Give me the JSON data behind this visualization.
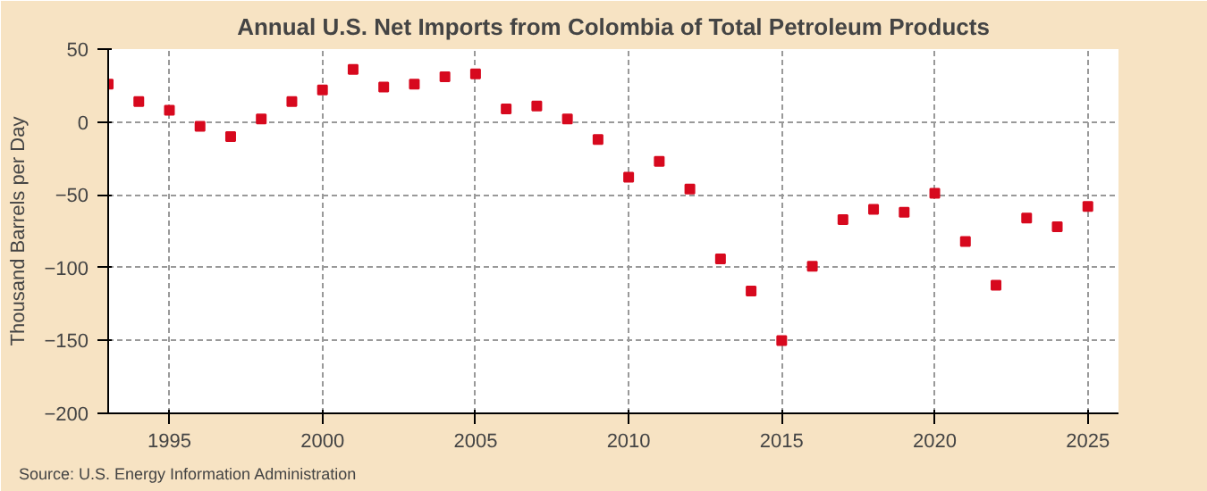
{
  "chart_data": {
    "type": "scatter",
    "title": "Annual U.S. Net Imports from Colombia of Total Petroleum Products",
    "ylabel": "Thousand Barrels per Day",
    "annotations": [
      "Source: U.S. Energy Information Administration"
    ],
    "x": [
      1993,
      1994,
      1995,
      1996,
      1997,
      1998,
      1999,
      2000,
      2001,
      2002,
      2003,
      2004,
      2005,
      2006,
      2007,
      2008,
      2009,
      2010,
      2011,
      2012,
      2013,
      2014,
      2015,
      2016,
      2017,
      2018,
      2019,
      2020,
      2021,
      2022,
      2023,
      2024,
      2025
    ],
    "series": [
      {
        "color": "#d7091e",
        "values": [
          26,
          14,
          8,
          -3,
          -10,
          2,
          14,
          22,
          36,
          24,
          26,
          31,
          33,
          9,
          11,
          2,
          -12,
          -38,
          -27,
          -46,
          -94,
          -116,
          -150,
          -99,
          -67,
          -60,
          -62,
          -49,
          -82,
          -112,
          -66,
          -72,
          -58
        ]
      }
    ],
    "xlim": [
      1993,
      2026
    ],
    "xticks": [
      1995,
      2000,
      2005,
      2010,
      2015,
      2020,
      2025
    ],
    "ylim": [
      -200,
      50
    ],
    "yticks": [
      -200,
      -150,
      -100,
      -50,
      0,
      50
    ],
    "grid": true,
    "marker": "square"
  }
}
